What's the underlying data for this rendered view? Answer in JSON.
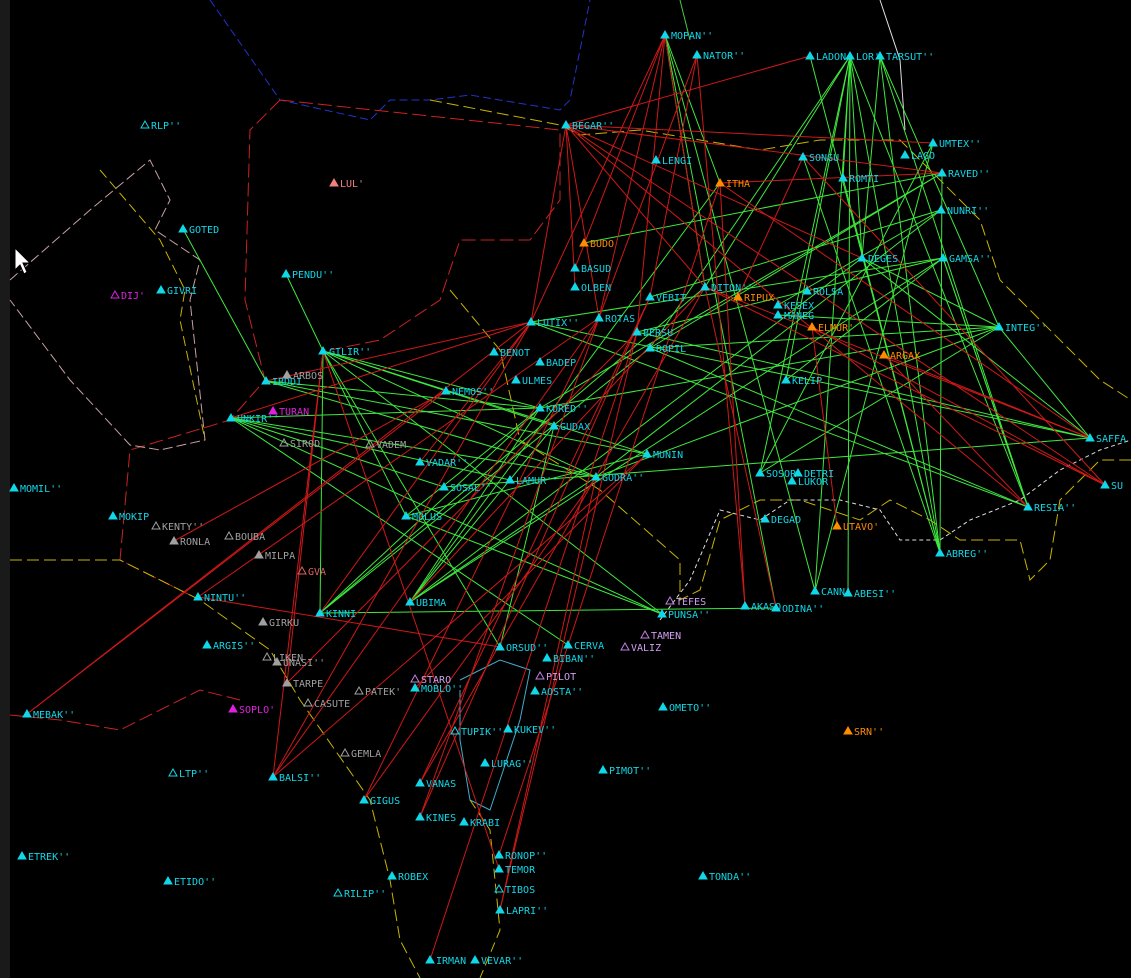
{
  "waypoints": [
    {
      "label": "MOPAN''"
    },
    {
      "label": "NATOR''"
    },
    {
      "label": "LADON"
    },
    {
      "label": "LOR'"
    },
    {
      "label": "TARSUT''"
    },
    {
      "label": "UMTEX''"
    },
    {
      "label": "BEGAR''"
    },
    {
      "label": "LENGI"
    },
    {
      "label": "SONGU"
    },
    {
      "label": "LAGO"
    },
    {
      "label": "RAVED''"
    },
    {
      "label": "ROMTI"
    },
    {
      "label": "NUNRI''"
    },
    {
      "label": "GAMSA''"
    },
    {
      "label": "DEGES"
    },
    {
      "label": "BASUD"
    },
    {
      "label": "OLBEN"
    },
    {
      "label": "VEBIT"
    },
    {
      "label": "DITON''"
    },
    {
      "label": "ROLSA"
    },
    {
      "label": "KESEX"
    },
    {
      "label": "MANEG"
    },
    {
      "label": "LUTIX''"
    },
    {
      "label": "ROTAS"
    },
    {
      "label": "BERSU"
    },
    {
      "label": "DOPIL"
    },
    {
      "label": "INTEG''"
    },
    {
      "label": "GILIR''"
    },
    {
      "label": "BENOT"
    },
    {
      "label": "BADEP"
    },
    {
      "label": "ULMES"
    },
    {
      "label": "KELIP"
    },
    {
      "label": "IBDDI"
    },
    {
      "label": "NEMOS''"
    },
    {
      "label": "KORED''"
    },
    {
      "label": "UNKIR''"
    },
    {
      "label": "GUDAX"
    },
    {
      "label": "SAFFA"
    },
    {
      "label": "MUNIN"
    },
    {
      "label": "VADAR''"
    },
    {
      "label": "SOSAL''"
    },
    {
      "label": "LAMUR''"
    },
    {
      "label": "GODRA''"
    },
    {
      "label": "SOSOR"
    },
    {
      "label": "DETRI"
    },
    {
      "label": "LUKOR"
    },
    {
      "label": "SU"
    },
    {
      "label": "RESIA''"
    },
    {
      "label": "MOLUS"
    },
    {
      "label": "DEGAD"
    },
    {
      "label": "MOMIL''"
    },
    {
      "label": "MOKIP"
    },
    {
      "label": "NINTU''"
    },
    {
      "label": "KINNI"
    },
    {
      "label": "UBIMA"
    },
    {
      "label": "ABREG''"
    },
    {
      "label": "CANNA"
    },
    {
      "label": "ABESI''"
    },
    {
      "label": "AKASO"
    },
    {
      "label": "ODINA''"
    },
    {
      "label": "PUNSA''"
    },
    {
      "label": "ARGIS''"
    },
    {
      "label": "ORSUD''"
    },
    {
      "label": "CERVA"
    },
    {
      "label": "BIBAN''"
    },
    {
      "label": "AOSTA''"
    },
    {
      "label": "MOBLO''"
    },
    {
      "label": "OMETO''"
    },
    {
      "label": "MEBAK''"
    },
    {
      "label": "TUPIK''"
    },
    {
      "label": "KUKEV''"
    },
    {
      "label": "LURAG''"
    },
    {
      "label": "PIMOT''"
    },
    {
      "label": "BALSI''"
    },
    {
      "label": "VANAS"
    },
    {
      "label": "GIGUS"
    },
    {
      "label": "KINES"
    },
    {
      "label": "KRABI"
    },
    {
      "label": "RONOP''"
    },
    {
      "label": "TEMOR"
    },
    {
      "label": "ETREK''"
    },
    {
      "label": "ROBEX"
    },
    {
      "label": "ETIDO''"
    },
    {
      "label": "TONDA''"
    },
    {
      "label": "TIBOS"
    },
    {
      "label": "LAPRI''"
    },
    {
      "label": "IRMAN"
    },
    {
      "label": "VEVAR''"
    },
    {
      "label": "GOTED"
    },
    {
      "label": "PENDU''"
    },
    {
      "label": "GIVRI"
    },
    {
      "label": "RLP''"
    },
    {
      "label": "LTP''"
    },
    {
      "label": "RILIP''"
    },
    {
      "label": "DIJ'"
    },
    {
      "label": "TURAN"
    },
    {
      "label": "SOPLO'"
    },
    {
      "label": "LUL'"
    },
    {
      "label": "ITHA"
    },
    {
      "label": "BUDO"
    },
    {
      "label": "RIPUX"
    },
    {
      "label": "ELMUR'"
    },
    {
      "label": "ARGAX"
    },
    {
      "label": "UTAVO'"
    },
    {
      "label": "SRN''"
    },
    {
      "label": "ARBOS"
    },
    {
      "label": "SIROD"
    },
    {
      "label": "VADEM"
    },
    {
      "label": "BOUBA"
    },
    {
      "label": "KENTY''"
    },
    {
      "label": "RONLA"
    },
    {
      "label": "MILPA"
    },
    {
      "label": "GVA"
    },
    {
      "label": "GIRKU"
    },
    {
      "label": "LIKEN"
    },
    {
      "label": "UNASI''"
    },
    {
      "label": "TARPE"
    },
    {
      "label": "PATEK'"
    },
    {
      "label": "CASUTE"
    },
    {
      "label": "GEMLA"
    },
    {
      "label": "TEFES"
    },
    {
      "label": "TAMEN"
    },
    {
      "label": "VALIZ"
    },
    {
      "label": "PILOT"
    },
    {
      "label": "STARO"
    }
  ]
}
